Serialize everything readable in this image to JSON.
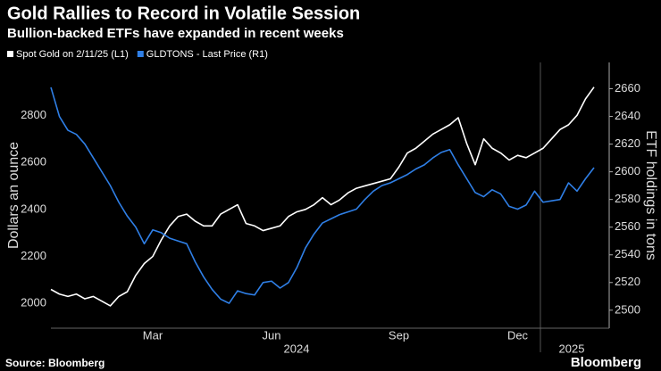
{
  "chart_data": {
    "type": "line",
    "title": "Gold Rallies to Record in Volatile Session",
    "subtitle": "Bullion-backed ETFs have expanded in recent weeks",
    "source": "Source: Bloomberg",
    "brand": "Bloomberg",
    "ylabel": "Dollars an ounce",
    "y2label": "ETF holdings in tons",
    "categories": [
      null,
      null,
      null,
      null,
      null,
      null,
      null,
      null,
      null,
      null,
      null,
      null,
      "Mar",
      null,
      null,
      null,
      null,
      null,
      null,
      null,
      null,
      null,
      null,
      null,
      null,
      null,
      "Jun",
      null,
      null,
      null,
      null,
      null,
      null,
      null,
      null,
      null,
      null,
      null,
      null,
      null,
      null,
      "Sep",
      null,
      null,
      null,
      null,
      null,
      null,
      null,
      null,
      null,
      null,
      null,
      null,
      null,
      "Dec",
      null,
      null,
      null,
      null,
      null,
      null,
      null,
      null,
      null
    ],
    "x_year_labels": [
      "2024",
      "2025"
    ],
    "ylim": [
      1895,
      3025
    ],
    "yticks": [
      2000,
      2200,
      2400,
      2600,
      2800
    ],
    "y2lim": [
      2487,
      2679
    ],
    "y2ticks": [
      2500,
      2520,
      2540,
      2560,
      2580,
      2600,
      2620,
      2640,
      2660
    ],
    "grid": false,
    "series": [
      {
        "name": "Spot Gold on 2/11/25 (L1)",
        "color": "#ffffff",
        "values": [
          2060,
          2040,
          2030,
          2040,
          2020,
          2030,
          2010,
          1990,
          2030,
          2050,
          2120,
          2170,
          2200,
          2270,
          2330,
          2370,
          2380,
          2350,
          2330,
          2330,
          2380,
          2400,
          2420,
          2340,
          2330,
          2310,
          2320,
          2330,
          2370,
          2390,
          2400,
          2420,
          2450,
          2420,
          2440,
          2470,
          2490,
          2500,
          2510,
          2520,
          2530,
          2580,
          2640,
          2660,
          2690,
          2720,
          2740,
          2760,
          2790,
          2680,
          2590,
          2700,
          2660,
          2640,
          2610,
          2630,
          2620,
          2640,
          2660,
          2700,
          2740,
          2760,
          2800,
          2870,
          2920
        ]
      },
      {
        "name": "GLDTONS - Last Price (R1)",
        "color": "#2f7fe6",
        "axis": "y2",
        "values": [
          2661,
          2640,
          2630,
          2627,
          2620,
          2610,
          2600,
          2590,
          2578,
          2568,
          2560,
          2548,
          2558,
          2556,
          2552,
          2550,
          2548,
          2535,
          2524,
          2515,
          2508,
          2505,
          2514,
          2512,
          2511,
          2520,
          2521,
          2516,
          2520,
          2531,
          2545,
          2555,
          2563,
          2566,
          2569,
          2571,
          2573,
          2580,
          2586,
          2590,
          2592,
          2595,
          2598,
          2602,
          2605,
          2610,
          2614,
          2616,
          2605,
          2595,
          2585,
          2582,
          2587,
          2584,
          2575,
          2573,
          2576,
          2586,
          2578,
          2579,
          2580,
          2592,
          2586,
          2595,
          2603
        ]
      }
    ]
  }
}
